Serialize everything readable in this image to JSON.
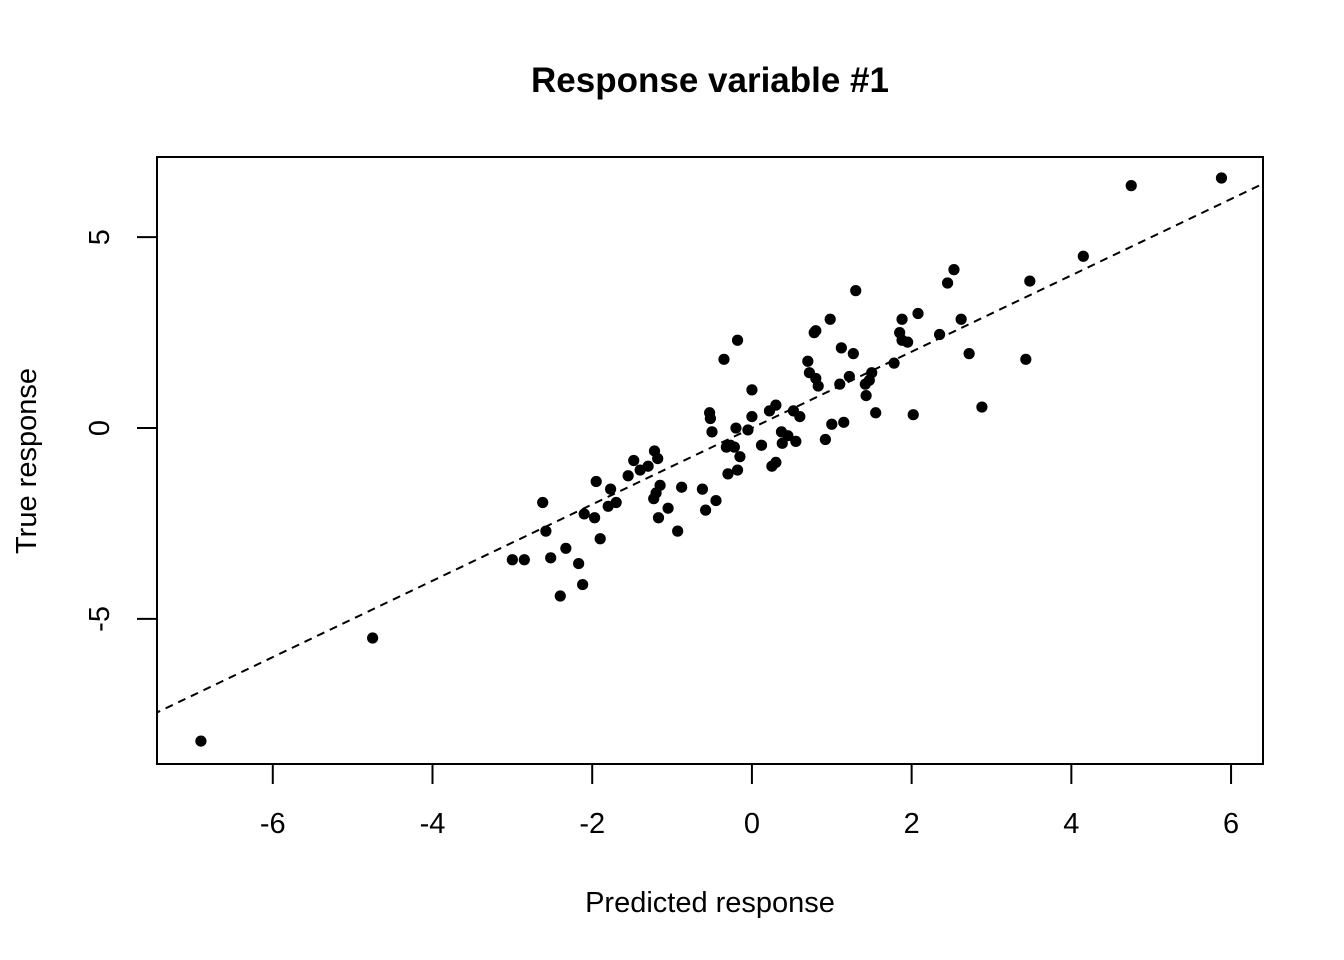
{
  "chart_data": {
    "type": "scatter",
    "title": "Response variable #1",
    "xlabel": "Predicted response",
    "ylabel": "True response",
    "xlim": [
      -7.45,
      6.4
    ],
    "ylim": [
      -8.8,
      7.1
    ],
    "xticks": [
      -6,
      -4,
      -2,
      0,
      2,
      4,
      6
    ],
    "yticks": [
      -5,
      0,
      5
    ],
    "grid": false,
    "legend": "none",
    "reference_line": {
      "style": "dashed",
      "slope": 1,
      "intercept": 0
    },
    "series": [
      {
        "points": [
          [
            -6.9,
            -8.2
          ],
          [
            -4.75,
            -5.5
          ],
          [
            -3.0,
            -3.45
          ],
          [
            -2.85,
            -3.45
          ],
          [
            -2.62,
            -1.95
          ],
          [
            -2.58,
            -2.7
          ],
          [
            -2.52,
            -3.4
          ],
          [
            -2.4,
            -4.4
          ],
          [
            -2.33,
            -3.15
          ],
          [
            -2.17,
            -3.55
          ],
          [
            -2.12,
            -4.1
          ],
          [
            -2.1,
            -2.25
          ],
          [
            -1.97,
            -2.35
          ],
          [
            -1.95,
            -1.4
          ],
          [
            -1.9,
            -2.9
          ],
          [
            -1.8,
            -2.05
          ],
          [
            -1.77,
            -1.6
          ],
          [
            -1.7,
            -1.95
          ],
          [
            -1.55,
            -1.25
          ],
          [
            -1.48,
            -0.85
          ],
          [
            -1.4,
            -1.1
          ],
          [
            -1.3,
            -1.0
          ],
          [
            -1.23,
            -1.85
          ],
          [
            -1.22,
            -0.6
          ],
          [
            -1.2,
            -1.7
          ],
          [
            -1.18,
            -0.8
          ],
          [
            -1.17,
            -2.35
          ],
          [
            -1.15,
            -1.5
          ],
          [
            -1.05,
            -2.1
          ],
          [
            -0.93,
            -2.7
          ],
          [
            -0.88,
            -1.55
          ],
          [
            -0.62,
            -1.6
          ],
          [
            -0.58,
            -2.15
          ],
          [
            -0.53,
            0.4
          ],
          [
            -0.52,
            0.25
          ],
          [
            -0.5,
            -0.1
          ],
          [
            -0.45,
            -1.9
          ],
          [
            -0.35,
            1.8
          ],
          [
            -0.32,
            -0.5
          ],
          [
            -0.3,
            -1.2
          ],
          [
            -0.27,
            -0.45
          ],
          [
            -0.22,
            -0.5
          ],
          [
            -0.2,
            0.0
          ],
          [
            -0.18,
            2.3
          ],
          [
            -0.18,
            -1.1
          ],
          [
            -0.15,
            -0.75
          ],
          [
            -0.05,
            -0.05
          ],
          [
            0.0,
            1.0
          ],
          [
            0.0,
            0.3
          ],
          [
            0.12,
            -0.45
          ],
          [
            0.22,
            0.45
          ],
          [
            0.25,
            -1.0
          ],
          [
            0.3,
            -0.9
          ],
          [
            0.3,
            0.6
          ],
          [
            0.37,
            -0.1
          ],
          [
            0.38,
            -0.4
          ],
          [
            0.45,
            -0.2
          ],
          [
            0.52,
            0.45
          ],
          [
            0.55,
            -0.35
          ],
          [
            0.6,
            0.3
          ],
          [
            0.7,
            1.75
          ],
          [
            0.72,
            1.45
          ],
          [
            0.78,
            2.5
          ],
          [
            0.8,
            2.55
          ],
          [
            0.8,
            1.3
          ],
          [
            0.83,
            1.1
          ],
          [
            0.92,
            -0.3
          ],
          [
            0.98,
            2.85
          ],
          [
            1.0,
            0.1
          ],
          [
            1.1,
            1.15
          ],
          [
            1.12,
            2.1
          ],
          [
            1.15,
            0.15
          ],
          [
            1.22,
            1.35
          ],
          [
            1.27,
            1.95
          ],
          [
            1.3,
            3.6
          ],
          [
            1.42,
            1.15
          ],
          [
            1.43,
            0.85
          ],
          [
            1.47,
            1.25
          ],
          [
            1.5,
            1.45
          ],
          [
            1.55,
            0.4
          ],
          [
            1.78,
            1.7
          ],
          [
            1.85,
            2.5
          ],
          [
            1.88,
            2.3
          ],
          [
            1.88,
            2.85
          ],
          [
            1.95,
            2.25
          ],
          [
            2.02,
            0.35
          ],
          [
            2.08,
            3.0
          ],
          [
            2.35,
            2.45
          ],
          [
            2.45,
            3.8
          ],
          [
            2.53,
            4.15
          ],
          [
            2.62,
            2.85
          ],
          [
            2.72,
            1.95
          ],
          [
            2.88,
            0.55
          ],
          [
            3.43,
            1.8
          ],
          [
            3.48,
            3.85
          ],
          [
            4.15,
            4.5
          ],
          [
            4.75,
            6.35
          ],
          [
            5.88,
            6.55
          ]
        ]
      }
    ]
  }
}
